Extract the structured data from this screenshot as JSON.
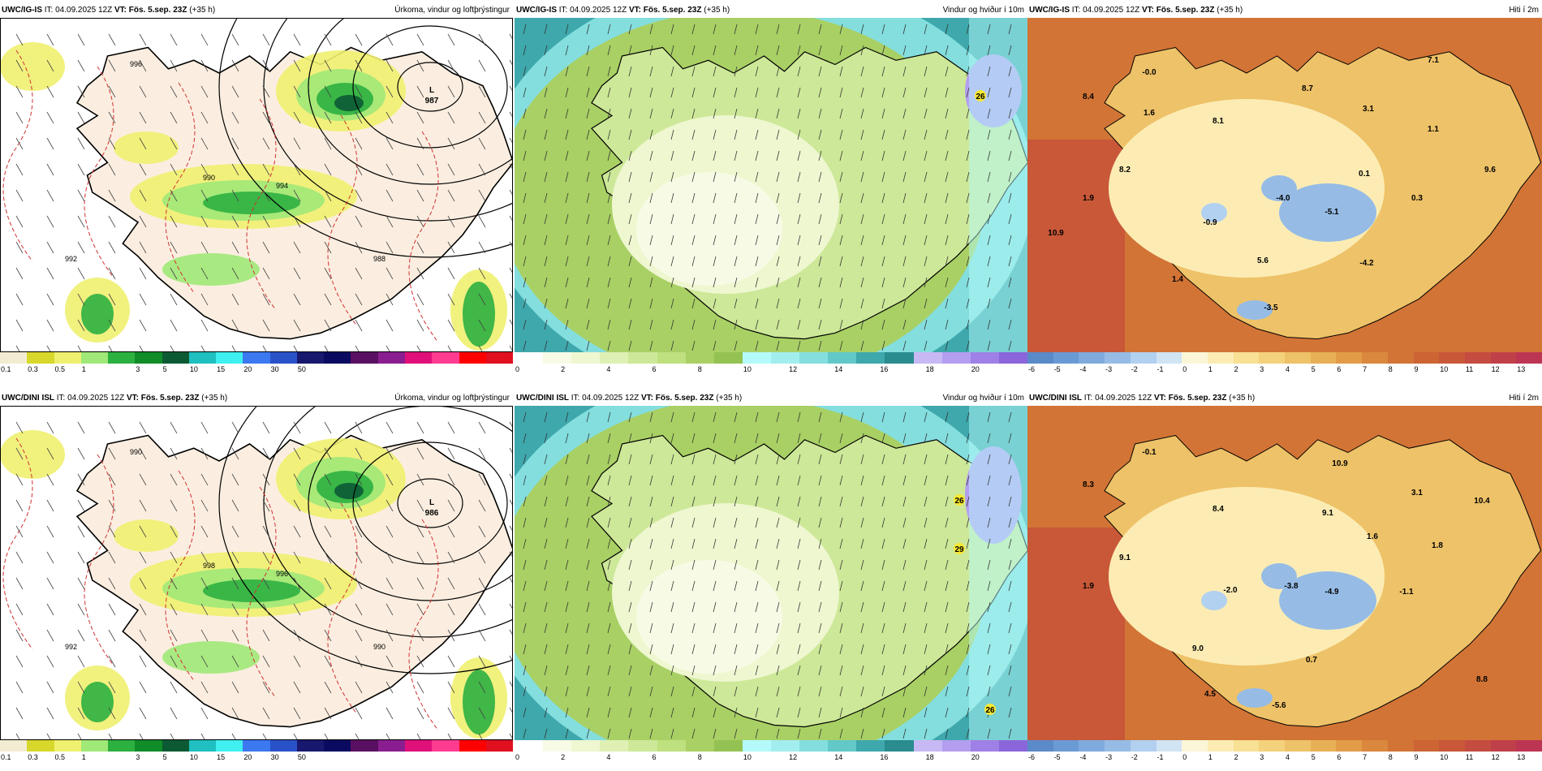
{
  "panels": [
    {
      "model": "UWC/IG-IS",
      "it": "IT: 04.09.2025 12Z",
      "vt": "VT: Fös. 5.sep. 23Z",
      "lead": "(+35 h)",
      "title": "Úrkoma, vindur og loftþrýstingur",
      "type": "precip",
      "labels": [
        "L",
        "987"
      ],
      "iso": [
        "996",
        "994",
        "992",
        "990",
        "988"
      ]
    },
    {
      "model": "UWC/IG-IS",
      "it": "IT: 04.09.2025 12Z",
      "vt": "VT: Fös. 5.sep. 23Z",
      "lead": "(+35 h)",
      "title": "Vindur og hviður í 10m",
      "type": "wind",
      "gusts": [
        "26"
      ]
    },
    {
      "model": "UWC/IG-IS",
      "it": "IT: 04.09.2025 12Z",
      "vt": "VT: Fös. 5.sep. 23Z",
      "lead": "(+35 h)",
      "title": "Hiti í 2m",
      "type": "temp",
      "temps": [
        "-0.0",
        "7.1",
        "8.4",
        "8.7",
        "3.1",
        "1.6",
        "8.1",
        "1.1",
        "8.2",
        "0.1",
        "9.6",
        "1.9",
        "-4.0",
        "0.3",
        "-0.9",
        "-5.1",
        "10.9",
        "5.6",
        "-4.2",
        "1.4",
        "-3.5"
      ]
    },
    {
      "model": "UWC/DINI ISL",
      "it": "IT: 04.09.2025 12Z",
      "vt": "VT: Fös. 5.sep. 23Z",
      "lead": "(+35 h)",
      "title": "Úrkoma, vindur og loftþrýstingur",
      "type": "precip",
      "labels": [
        "L",
        "986"
      ],
      "iso": [
        "990",
        "996",
        "992",
        "998",
        "990"
      ]
    },
    {
      "model": "UWC/DINI ISL",
      "it": "IT: 04.09.2025 12Z",
      "vt": "VT: Fös. 5.sep. 23Z",
      "lead": "(+35 h)",
      "title": "Vindur og hviður í 10m",
      "type": "wind",
      "gusts": [
        "26",
        "29",
        "26"
      ]
    },
    {
      "model": "UWC/DINI ISL",
      "it": "IT: 04.09.2025 12Z",
      "vt": "VT: Fös. 5.sep. 23Z",
      "lead": "(+35 h)",
      "title": "Hiti í 2m",
      "type": "temp",
      "temps": [
        "-0.1",
        "10.9",
        "8.3",
        "3.1",
        "10.4",
        "8.4",
        "9.1",
        "1.6",
        "1.8",
        "9.1",
        "1.9",
        "-2.0",
        "-3.8",
        "-4.9",
        "-1.1",
        "9.0",
        "0.7",
        "8.8",
        "4.5",
        "-5.6"
      ]
    }
  ],
  "colorbars": {
    "precip": {
      "colors": [
        "#f4ecd2",
        "#d8d82c",
        "#f0f070",
        "#a0e878",
        "#2cb040",
        "#108c28",
        "#0c5a34",
        "#20c0c0",
        "#40f0f0",
        "#3c78f0",
        "#2a52c8",
        "#18186e",
        "#0a0a60",
        "#5a1062",
        "#8a1e90",
        "#e0107a",
        "#ff3c90",
        "#ff0000",
        "#e01020"
      ],
      "ticks": [
        "0.1",
        "0.3",
        "0.5",
        "1",
        "3",
        "5",
        "10",
        "15",
        "20",
        "30",
        "50"
      ]
    },
    "wind": {
      "colors": [
        "#ffffff",
        "#f7fbe6",
        "#eef7d0",
        "#dff0b4",
        "#cde898",
        "#bfe07e",
        "#a9d064",
        "#94c252",
        "#b4fafa",
        "#a2eeee",
        "#84dede",
        "#62c8c8",
        "#3ea8ac",
        "#2a8c8e",
        "#c8b8f4",
        "#b49ef0",
        "#9e80e6",
        "#8a66da"
      ],
      "ticks": [
        "0",
        "2",
        "4",
        "6",
        "8",
        "10",
        "12",
        "14",
        "16",
        "18",
        "20"
      ]
    },
    "temp": {
      "colors": [
        "#5a8ac8",
        "#6a9ad4",
        "#7eaade",
        "#96bce6",
        "#b2d0f0",
        "#d0e4f4",
        "#fcf6d8",
        "#fcecb4",
        "#f8e094",
        "#f4d27c",
        "#eec268",
        "#e8b056",
        "#e29c48",
        "#da883e",
        "#d27436",
        "#cc6434",
        "#c85838",
        "#c44c40",
        "#c0404a",
        "#bc3654"
      ],
      "ticks": [
        "-6",
        "-5",
        "-4",
        "-3",
        "-2",
        "-1",
        "0",
        "1",
        "2",
        "3",
        "4",
        "5",
        "6",
        "7",
        "8",
        "9",
        "10",
        "11",
        "12",
        "13"
      ]
    }
  }
}
